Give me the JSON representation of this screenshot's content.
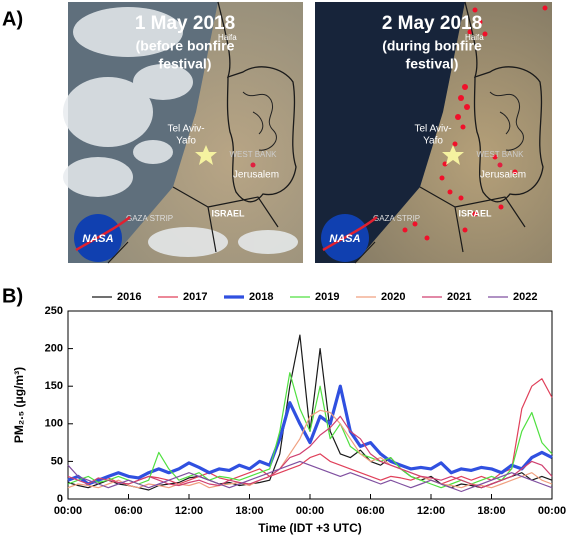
{
  "panel_labels": [
    "A)",
    "B)"
  ],
  "panel_a": {
    "maps": [
      {
        "title": "1 May 2018",
        "subtitle_lines": [
          "(before bonfire",
          "festival)"
        ],
        "labels": {
          "haifa": "Haifa",
          "tel_aviv": [
            "Tel Aviv-",
            "Yafo"
          ],
          "west_bank": "WEST BANK",
          "jerusalem": "Jerusalem",
          "gaza": "GAZA STRIP",
          "israel": "ISRAEL",
          "logo": "NASA"
        }
      },
      {
        "title": "2 May 2018",
        "subtitle_lines": [
          "(during bonfire",
          "festival)"
        ],
        "labels": {
          "haifa": "Haifa",
          "tel_aviv": [
            "Tel Aviv-",
            "Yafo"
          ],
          "west_bank": "WEST BANK",
          "jerusalem": "Jerusalem",
          "gaza": "GAZA STRIP",
          "israel": "ISRAEL",
          "logo": "NASA"
        }
      }
    ]
  },
  "chart_data": {
    "type": "line",
    "x_label": "Time (IDT +3 UTC)",
    "y_label": "PM₂.₅ (μg/m³)",
    "legend": "top",
    "x": [
      0,
      1,
      2,
      3,
      4,
      5,
      6,
      7,
      8,
      9,
      10,
      11,
      12,
      13,
      14,
      15,
      16,
      17,
      18,
      19,
      20,
      21,
      22,
      23,
      24,
      25,
      26,
      27,
      28,
      29,
      30,
      31,
      32,
      33,
      34,
      35,
      36,
      37,
      38,
      39,
      40,
      41,
      42,
      43,
      44,
      45,
      46,
      47,
      48
    ],
    "xlim": [
      0,
      48
    ],
    "xticks": [
      {
        "value": 0,
        "label": "00:00"
      },
      {
        "value": 6,
        "label": "06:00"
      },
      {
        "value": 12,
        "label": "12:00"
      },
      {
        "value": 18,
        "label": "18:00"
      },
      {
        "value": 24,
        "label": "00:00"
      },
      {
        "value": 30,
        "label": "06:00"
      },
      {
        "value": 36,
        "label": "12:00"
      },
      {
        "value": 42,
        "label": "18:00"
      },
      {
        "value": 48,
        "label": "00:00"
      }
    ],
    "ylim": [
      0,
      250
    ],
    "yticks": [
      0,
      50,
      100,
      150,
      200,
      250
    ],
    "series": [
      {
        "name": "2016",
        "color": "#1a1a1a",
        "line_width": 1.2,
        "values": [
          22,
          18,
          15,
          20,
          25,
          20,
          18,
          15,
          12,
          18,
          20,
          22,
          28,
          30,
          25,
          20,
          22,
          18,
          20,
          22,
          25,
          60,
          150,
          218,
          90,
          200,
          90,
          60,
          55,
          65,
          50,
          45,
          55,
          40,
          30,
          25,
          30,
          20,
          15,
          20,
          18,
          15,
          20,
          25,
          30,
          35,
          25,
          30,
          25
        ]
      },
      {
        "name": "2017",
        "color": "#e0405a",
        "line_width": 1.2,
        "values": [
          25,
          30,
          20,
          25,
          28,
          22,
          20,
          25,
          30,
          28,
          25,
          20,
          25,
          30,
          35,
          28,
          25,
          30,
          35,
          40,
          30,
          35,
          40,
          45,
          55,
          60,
          50,
          45,
          40,
          35,
          30,
          25,
          30,
          28,
          25,
          30,
          25,
          20,
          25,
          30,
          25,
          30,
          25,
          35,
          40,
          120,
          150,
          160,
          135
        ]
      },
      {
        "name": "2018",
        "color": "#3050e0",
        "line_width": 3.2,
        "values": [
          25,
          30,
          20,
          25,
          30,
          35,
          30,
          28,
          35,
          40,
          35,
          40,
          48,
          42,
          35,
          40,
          38,
          45,
          40,
          50,
          45,
          80,
          128,
          100,
          75,
          110,
          100,
          150,
          90,
          70,
          75,
          60,
          50,
          45,
          40,
          42,
          40,
          48,
          35,
          40,
          38,
          42,
          40,
          35,
          45,
          40,
          55,
          62,
          55
        ]
      },
      {
        "name": "2019",
        "color": "#50e040",
        "line_width": 1.2,
        "values": [
          20,
          25,
          30,
          22,
          25,
          30,
          25,
          20,
          25,
          62,
          40,
          25,
          30,
          35,
          25,
          30,
          28,
          25,
          30,
          35,
          40,
          90,
          168,
          120,
          90,
          150,
          80,
          100,
          70,
          60,
          55,
          50,
          55,
          40,
          30,
          25,
          20,
          15,
          20,
          25,
          20,
          25,
          30,
          25,
          40,
          90,
          115,
          75,
          60
        ]
      },
      {
        "name": "2020",
        "color": "#f0a080",
        "line_width": 1.2,
        "values": [
          15,
          20,
          18,
          15,
          20,
          25,
          18,
          15,
          20,
          18,
          15,
          20,
          18,
          22,
          15,
          18,
          20,
          22,
          18,
          25,
          30,
          40,
          60,
          80,
          110,
          118,
          115,
          100,
          80,
          60,
          50,
          55,
          45,
          40,
          35,
          30,
          25,
          20,
          18,
          15,
          20,
          18,
          15,
          20,
          25,
          30,
          35,
          25,
          20
        ]
      },
      {
        "name": "2021",
        "color": "#d04070",
        "line_width": 1.2,
        "values": [
          30,
          25,
          20,
          28,
          25,
          22,
          20,
          25,
          30,
          25,
          20,
          18,
          22,
          25,
          20,
          18,
          25,
          22,
          20,
          25,
          30,
          40,
          55,
          60,
          70,
          85,
          95,
          110,
          90,
          80,
          60,
          50,
          45,
          40,
          35,
          30,
          28,
          25,
          30,
          25,
          20,
          15,
          20,
          25,
          30,
          40,
          50,
          45,
          30
        ]
      },
      {
        "name": "2022",
        "color": "#8050a0",
        "line_width": 1.2,
        "values": [
          45,
          30,
          25,
          20,
          15,
          20,
          25,
          20,
          15,
          20,
          25,
          30,
          35,
          30,
          25,
          20,
          15,
          20,
          25,
          30,
          35,
          40,
          45,
          50,
          45,
          40,
          35,
          30,
          35,
          30,
          25,
          20,
          25,
          20,
          15,
          20,
          25,
          20,
          15,
          10,
          15,
          20,
          25,
          30,
          35,
          30,
          25,
          20,
          15
        ]
      }
    ]
  }
}
